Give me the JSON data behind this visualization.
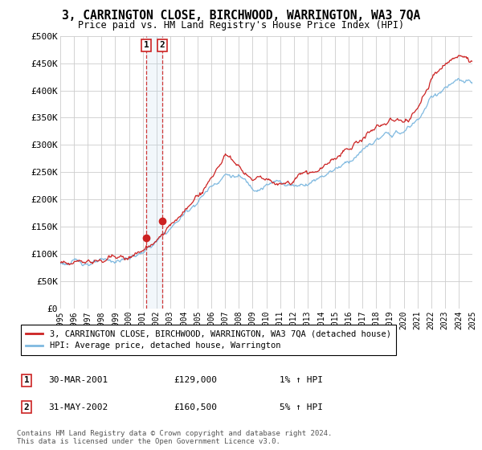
{
  "title": "3, CARRINGTON CLOSE, BIRCHWOOD, WARRINGTON, WA3 7QA",
  "subtitle": "Price paid vs. HM Land Registry's House Price Index (HPI)",
  "ylim": [
    0,
    500000
  ],
  "yticks": [
    0,
    50000,
    100000,
    150000,
    200000,
    250000,
    300000,
    350000,
    400000,
    450000,
    500000
  ],
  "ytick_labels": [
    "£0",
    "£50K",
    "£100K",
    "£150K",
    "£200K",
    "£250K",
    "£300K",
    "£350K",
    "£400K",
    "£450K",
    "£500K"
  ],
  "hpi_color": "#7fb9e0",
  "price_color": "#cc2222",
  "marker_color": "#cc2222",
  "vline_color": "#cc2222",
  "background_color": "#ffffff",
  "grid_color": "#cccccc",
  "legend_label_price": "3, CARRINGTON CLOSE, BIRCHWOOD, WARRINGTON, WA3 7QA (detached house)",
  "legend_label_hpi": "HPI: Average price, detached house, Warrington",
  "transaction1_label": "1",
  "transaction1_date": "30-MAR-2001",
  "transaction1_price": "£129,000",
  "transaction1_hpi": "1% ↑ HPI",
  "transaction1_year": 2001.25,
  "transaction1_value": 129000,
  "transaction2_label": "2",
  "transaction2_date": "31-MAY-2002",
  "transaction2_price": "£160,500",
  "transaction2_hpi": "5% ↑ HPI",
  "transaction2_year": 2002.42,
  "transaction2_value": 160500,
  "footer_line1": "Contains HM Land Registry data © Crown copyright and database right 2024.",
  "footer_line2": "This data is licensed under the Open Government Licence v3.0.",
  "x_start": 1995.0,
  "x_end": 2025.0,
  "xtick_years": [
    1995,
    1996,
    1997,
    1998,
    1999,
    2000,
    2001,
    2002,
    2003,
    2004,
    2005,
    2006,
    2007,
    2008,
    2009,
    2010,
    2011,
    2012,
    2013,
    2014,
    2015,
    2016,
    2017,
    2018,
    2019,
    2020,
    2021,
    2022,
    2023,
    2024,
    2025
  ],
  "hpi_anchors_x": [
    1995,
    1996,
    1997,
    1998,
    1999,
    2000,
    2001,
    2002,
    2003,
    2004,
    2005,
    2006,
    2007,
    2008,
    2009,
    2010,
    2011,
    2012,
    2013,
    2014,
    2015,
    2016,
    2017,
    2018,
    2019,
    2020,
    2021,
    2022,
    2023,
    2024,
    2025
  ],
  "hpi_anchors_y": [
    83000,
    84000,
    85000,
    83000,
    86000,
    92000,
    103000,
    120000,
    145000,
    172000,
    198000,
    225000,
    248000,
    242000,
    222000,
    228000,
    232000,
    226000,
    232000,
    245000,
    258000,
    272000,
    290000,
    308000,
    318000,
    322000,
    345000,
    385000,
    405000,
    415000,
    410000
  ],
  "price_anchors_x": [
    1995,
    1996,
    1997,
    1998,
    1999,
    2000,
    2001,
    2002,
    2003,
    2004,
    2005,
    2006,
    2007,
    2008,
    2009,
    2010,
    2011,
    2012,
    2013,
    2014,
    2015,
    2016,
    2017,
    2018,
    2019,
    2020,
    2021,
    2022,
    2023,
    2024,
    2025
  ],
  "price_anchors_y": [
    84000,
    85000,
    86000,
    84000,
    87000,
    93000,
    105000,
    122000,
    148000,
    178000,
    205000,
    238000,
    270000,
    262000,
    232000,
    238000,
    242000,
    238000,
    248000,
    258000,
    272000,
    290000,
    310000,
    328000,
    342000,
    338000,
    368000,
    418000,
    445000,
    460000,
    455000
  ]
}
